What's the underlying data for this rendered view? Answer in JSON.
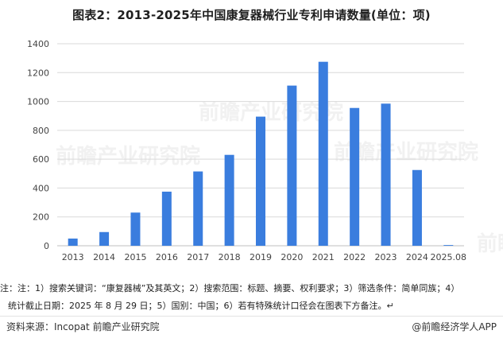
{
  "title": "图表2：2013-2025年中国康复器械行业专利申请数量(单位：项)",
  "watermark": "前瞻产业研究院",
  "note_line1": "注：注：1）搜索关键词：“康复器械”及其英文；2）搜索范围：标题、摘要、权利要求；3）筛选条件：简单同族；4）",
  "note_line2": "统计截止日期：2025 年 8 月 29 日；5）国别：中国；6）若有特殊统计口径会在图表下方备注。↵",
  "source": "资料来源：Incopat 前瞻产业研究院",
  "credit": "@前瞻经济学人APP",
  "colors": {
    "bar": "#3a7dde",
    "grid": "#d9d9d9"
  },
  "chart_data": {
    "type": "bar",
    "title": "图表2：2013-2025年中国康复器械行业专利申请数量(单位：项)",
    "xlabel": "",
    "ylabel": "",
    "categories": [
      "2013",
      "2014",
      "2015",
      "2016",
      "2017",
      "2018",
      "2019",
      "2020",
      "2021",
      "2022",
      "2023",
      "2024",
      "2025.08"
    ],
    "values": [
      50,
      95,
      230,
      375,
      515,
      630,
      895,
      1110,
      1275,
      955,
      985,
      525,
      5
    ],
    "ylim": [
      0,
      1400
    ],
    "yticks": [
      0,
      200,
      400,
      600,
      800,
      1000,
      1200,
      1400
    ],
    "grid": true,
    "legend": "none"
  }
}
